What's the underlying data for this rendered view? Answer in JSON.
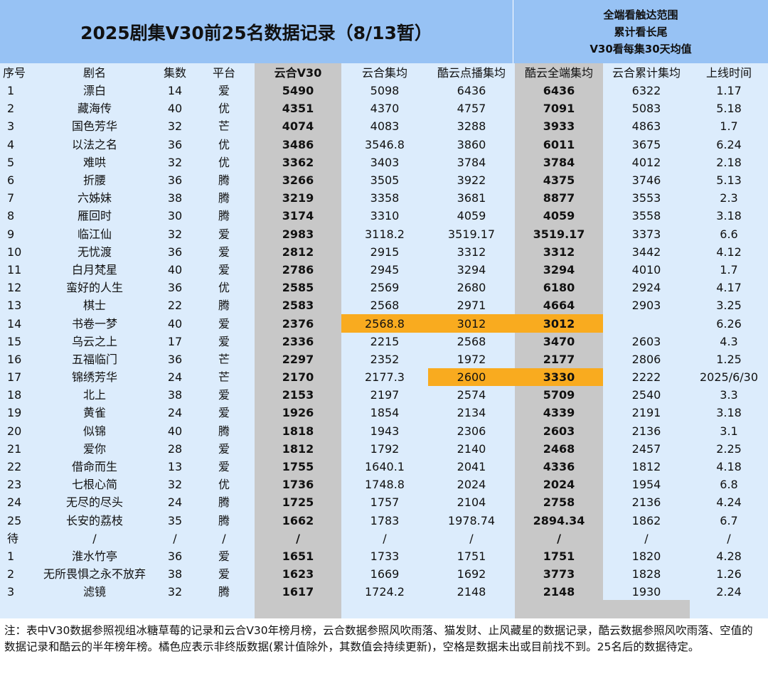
{
  "title": "2025剧集V30前25名数据记录（8/13暂）",
  "note_lines": [
    "全端看触达范围",
    "累计看长尾",
    "V30看每集30天均值"
  ],
  "columns": [
    "序号",
    "剧名",
    "集数",
    "平台",
    "云合V30",
    "云合集均",
    "酷云点播集均",
    "酷云全端集均",
    "云合累计集均",
    "上线时间"
  ],
  "rows": [
    [
      "1",
      "漂白",
      "14",
      "爱",
      "5490",
      "5098",
      "6436",
      "6436",
      "6322",
      "1.17"
    ],
    [
      "2",
      "藏海传",
      "40",
      "优",
      "4351",
      "4370",
      "4757",
      "7091",
      "5083",
      "5.18"
    ],
    [
      "3",
      "国色芳华",
      "32",
      "芒",
      "4074",
      "4083",
      "3288",
      "3933",
      "4863",
      "1.7"
    ],
    [
      "4",
      "以法之名",
      "36",
      "优",
      "3486",
      "3546.8",
      "3860",
      "6011",
      "3675",
      "6.24"
    ],
    [
      "5",
      "难哄",
      "32",
      "优",
      "3362",
      "3403",
      "3784",
      "3784",
      "4012",
      "2.18"
    ],
    [
      "6",
      "折腰",
      "36",
      "腾",
      "3266",
      "3505",
      "3922",
      "4375",
      "3746",
      "5.13"
    ],
    [
      "7",
      "六姊妹",
      "38",
      "腾",
      "3219",
      "3358",
      "3681",
      "8877",
      "3553",
      "2.3"
    ],
    [
      "8",
      "雁回时",
      "30",
      "腾",
      "3174",
      "3310",
      "4059",
      "4059",
      "3558",
      "3.18"
    ],
    [
      "9",
      "临江仙",
      "32",
      "爱",
      "2983",
      "3118.2",
      "3519.17",
      "3519.17",
      "3373",
      "6.6"
    ],
    [
      "10",
      "无忧渡",
      "36",
      "爱",
      "2812",
      "2915",
      "3312",
      "3312",
      "3442",
      "4.12"
    ],
    [
      "11",
      "白月梵星",
      "40",
      "爱",
      "2786",
      "2945",
      "3294",
      "3294",
      "4010",
      "1.7"
    ],
    [
      "12",
      "蛮好的人生",
      "36",
      "优",
      "2585",
      "2569",
      "2680",
      "6180",
      "2924",
      "4.17"
    ],
    [
      "13",
      "棋士",
      "22",
      "腾",
      "2583",
      "2568",
      "2971",
      "4664",
      "2903",
      "3.25"
    ],
    [
      "14",
      "书卷一梦",
      "40",
      "爱",
      "2376",
      "2568.8",
      "3012",
      "3012",
      "",
      "6.26"
    ],
    [
      "15",
      "乌云之上",
      "17",
      "爱",
      "2336",
      "2215",
      "2568",
      "3470",
      "2603",
      "4.3"
    ],
    [
      "16",
      "五福临门",
      "36",
      "芒",
      "2297",
      "2352",
      "1972",
      "2177",
      "2806",
      "1.25"
    ],
    [
      "17",
      "锦绣芳华",
      "24",
      "芒",
      "2170",
      "2177.3",
      "2600",
      "3330",
      "2222",
      "2025/6/30"
    ],
    [
      "18",
      "北上",
      "38",
      "爱",
      "2153",
      "2197",
      "2574",
      "5709",
      "2540",
      "3.3"
    ],
    [
      "19",
      "黄雀",
      "24",
      "爱",
      "1926",
      "1854",
      "2134",
      "4339",
      "2191",
      "3.18"
    ],
    [
      "20",
      "似锦",
      "40",
      "腾",
      "1818",
      "1943",
      "2306",
      "2603",
      "2136",
      "3.1"
    ],
    [
      "21",
      "爱你",
      "28",
      "爱",
      "1812",
      "1792",
      "2140",
      "2468",
      "2457",
      "2.25"
    ],
    [
      "22",
      "借命而生",
      "13",
      "爱",
      "1755",
      "1640.1",
      "2041",
      "4336",
      "1812",
      "4.18"
    ],
    [
      "23",
      "七根心简",
      "32",
      "优",
      "1736",
      "1748.8",
      "2024",
      "2024",
      "1954",
      "6.8"
    ],
    [
      "24",
      "无尽的尽头",
      "24",
      "腾",
      "1725",
      "1757",
      "2104",
      "2758",
      "2136",
      "4.24"
    ],
    [
      "25",
      "长安的荔枝",
      "35",
      "腾",
      "1662",
      "1783",
      "1978.74",
      "2894.34",
      "1862",
      "6.7"
    ],
    [
      "待",
      "/",
      "/",
      "/",
      "/",
      "/",
      "/",
      "/",
      "/",
      "/"
    ],
    [
      "1",
      "淮水竹亭",
      "36",
      "爱",
      "1651",
      "1733",
      "1751",
      "1751",
      "1820",
      "4.28"
    ],
    [
      "2",
      "无所畏惧之永不放弃",
      "38",
      "爱",
      "1623",
      "1669",
      "1692",
      "3773",
      "1828",
      "1.26"
    ],
    [
      "3",
      "滤镜",
      "32",
      "腾",
      "1617",
      "1724.2",
      "2148",
      "2148",
      "1930",
      "2.24"
    ]
  ],
  "highlighted_cells": [
    [
      13,
      5
    ],
    [
      13,
      6
    ],
    [
      13,
      7
    ],
    [
      16,
      6
    ],
    [
      16,
      7
    ]
  ],
  "highlight_color": "#f9ab1f",
  "header_color": "#97c2f4",
  "body_color": "#dcecfc",
  "gray_column_color": "#c8c8c8",
  "footnote": "注：表中V30数据参照视组冰糖草莓的记录和云合V30年榜月榜，云合数据参照风吹雨落、猫发财、止风藏星的数据记录，酷云数据参照风吹雨落、空值的数据记录和酷云的半年榜年榜。橘色应表示非终版数据(累计值除外，其数值会持续更新)，空格是数据未出或目前找不到。25名后的数据待定。"
}
